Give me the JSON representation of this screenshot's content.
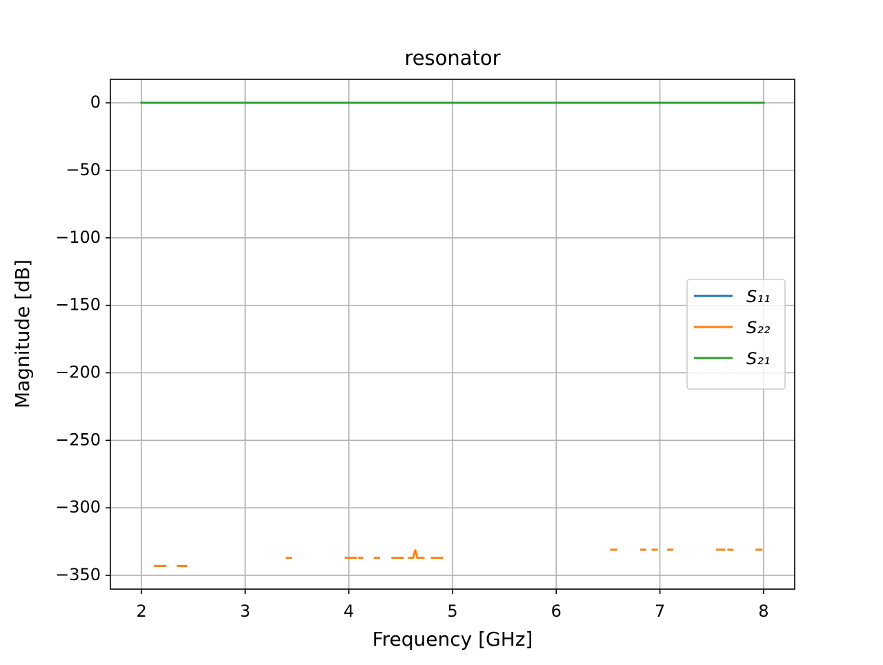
{
  "chart_data": {
    "type": "line",
    "title": "resonator",
    "x_label": "Frequency [GHz]",
    "y_label": "Magnitude [dB]",
    "xlim": [
      1.7,
      8.3
    ],
    "ylim": [
      -360.2,
      17.4
    ],
    "xticks": [
      2,
      3,
      4,
      5,
      6,
      7,
      8
    ],
    "yticks": [
      0,
      {
        "value": -50,
        "label": "−50"
      },
      {
        "value": -100,
        "label": "−100"
      },
      {
        "value": -150,
        "label": "−150"
      },
      {
        "value": -200,
        "label": "−200"
      },
      {
        "value": -250,
        "label": "−250"
      },
      {
        "value": -300,
        "label": "−300"
      },
      {
        "value": -350,
        "label": "−350"
      }
    ],
    "grid": true,
    "legend": "center right",
    "series": [
      {
        "name": "S₁₁",
        "color": "#1f77b4",
        "x": [
          2,
          8
        ],
        "values": [
          0,
          0
        ]
      },
      {
        "name": "S₂₂",
        "color": "#ff7f0e",
        "x": [
          2.13,
          2.23,
          2.28,
          2.35,
          2.43,
          2.5,
          3.4,
          3.44,
          3.5,
          3.97,
          4.07,
          4.1,
          4.1,
          4.13,
          4.2,
          4.25,
          4.29,
          4.35,
          4.42,
          4.46,
          4.48,
          4.48,
          4.52,
          4.55,
          4.58,
          4.62,
          4.64,
          4.66,
          4.72,
          4.75,
          4.8,
          4.9,
          5,
          6.53,
          6.58,
          6.7,
          6.82,
          6.86,
          6.9,
          6.93,
          6.97,
          7.02,
          7.08,
          7.12,
          7.3,
          7.55,
          7.62,
          7.64,
          7.66,
          7.7,
          7.8,
          7.93,
          7.98
        ],
        "values": [
          -343,
          -343,
          null,
          -343,
          -343,
          null,
          -337,
          -337,
          null,
          -337,
          -337,
          null,
          -337,
          -337,
          null,
          -337,
          -337,
          null,
          -337,
          -337,
          null,
          -337,
          -337,
          null,
          -337,
          -337,
          -331,
          -337,
          -337,
          null,
          -337,
          -337,
          null,
          -331,
          -331,
          null,
          -331,
          -331,
          null,
          -331,
          -331,
          null,
          -331,
          -331,
          null,
          -331,
          -331,
          null,
          -331,
          -331,
          null,
          -331,
          -331
        ]
      },
      {
        "name": "S₂₁",
        "color": "#2ca02c",
        "x": [
          2,
          8
        ],
        "values": [
          0,
          0
        ]
      }
    ]
  }
}
